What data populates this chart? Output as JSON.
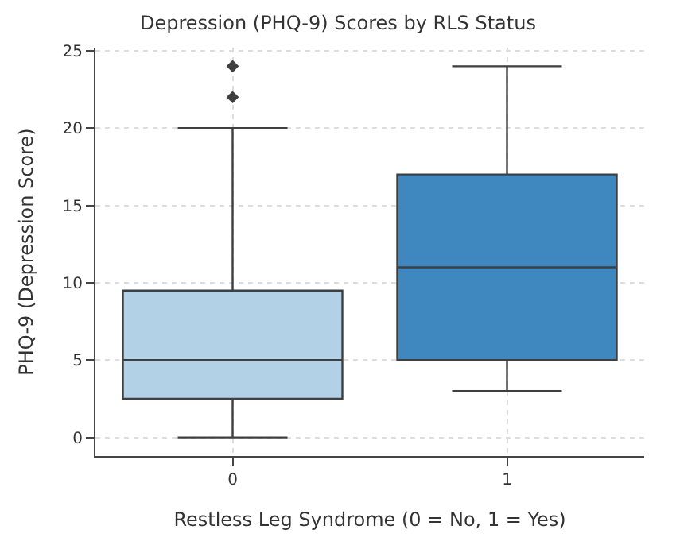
{
  "chart_data": {
    "type": "box",
    "title": "Depression (PHQ-9) Scores by RLS Status",
    "xlabel": "Restless Leg Syndrome (0 = No, 1 = Yes)",
    "ylabel": "PHQ-9 (Depression Score)",
    "categories": [
      "0",
      "1"
    ],
    "colors": [
      "#b3d1e6",
      "#3f88bf"
    ],
    "boxes": [
      {
        "low": 0,
        "q1": 2.5,
        "median": 5,
        "q3": 9.5,
        "high": 20,
        "outliers": [
          22,
          24
        ]
      },
      {
        "low": 3,
        "q1": 5,
        "median": 11,
        "q3": 17,
        "high": 24
      }
    ],
    "ylim": [
      -1.2,
      25.2
    ],
    "yticks": [
      0,
      5,
      10,
      15,
      20,
      25
    ],
    "grid": true,
    "marker": "diamond"
  }
}
